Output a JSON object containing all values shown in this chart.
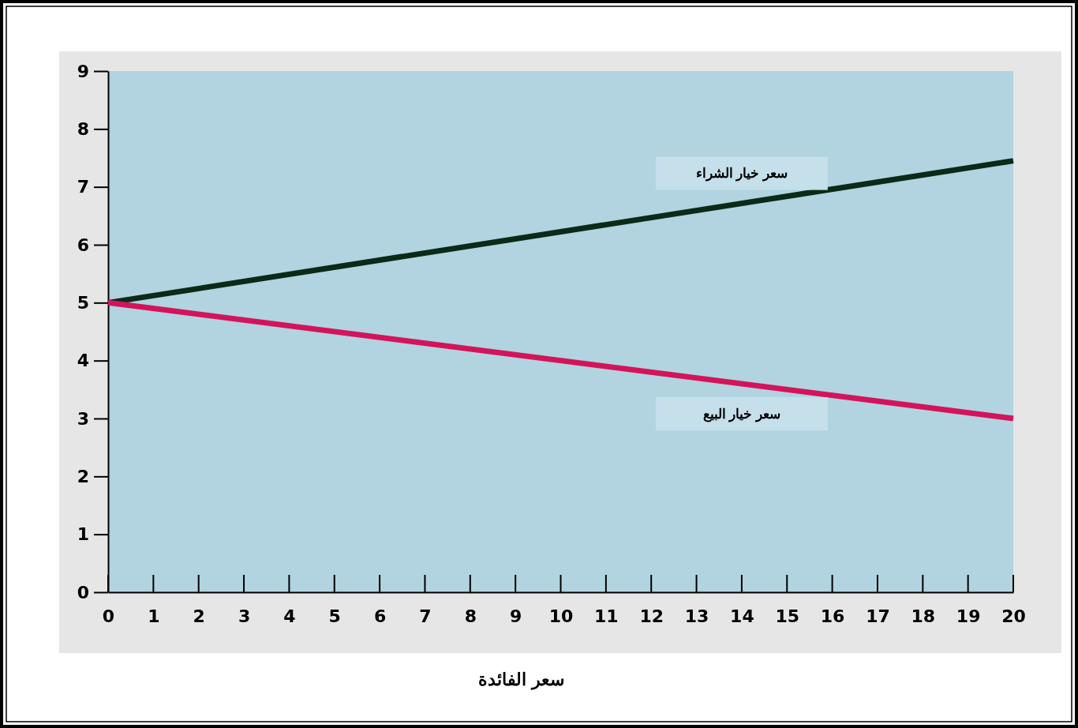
{
  "chart_data": {
    "type": "line",
    "xlabel": "سعر الفائدة",
    "x": [
      0,
      20
    ],
    "xlim": [
      0,
      20
    ],
    "xticks": [
      0,
      1,
      2,
      3,
      4,
      5,
      6,
      7,
      8,
      9,
      10,
      11,
      12,
      13,
      14,
      15,
      16,
      17,
      18,
      19,
      20
    ],
    "ylim": [
      0,
      9
    ],
    "yticks": [
      0,
      1,
      2,
      3,
      4,
      5,
      6,
      7,
      8,
      9
    ],
    "grid": false,
    "legend": false,
    "marker": "none",
    "line_style": "solid",
    "series": [
      {
        "name": "سعر خيار الشراء",
        "color": "#0b2a17",
        "values": [
          5,
          7.45
        ]
      },
      {
        "name": "سعر خيار البيع",
        "color": "#d4145a",
        "values": [
          5,
          3
        ]
      }
    ]
  }
}
